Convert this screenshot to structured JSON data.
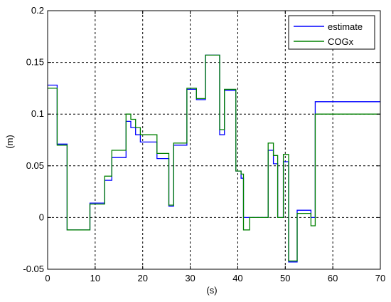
{
  "chart_data": {
    "type": "line",
    "xlabel": "(s)",
    "ylabel": "(m)",
    "xlim": [
      0,
      70
    ],
    "ylim": [
      -0.05,
      0.2
    ],
    "xticks": [
      0,
      10,
      20,
      30,
      40,
      50,
      60,
      70
    ],
    "xtick_labels": [
      "0",
      "10",
      "20",
      "30",
      "40",
      "50",
      "60",
      "70"
    ],
    "yticks": [
      -0.05,
      0,
      0.05,
      0.1,
      0.15,
      0.2
    ],
    "ytick_labels": [
      "-0.05",
      "0",
      "0.05",
      "0.1",
      "0.15",
      "0.2"
    ],
    "grid": true,
    "legend_position": "top-right",
    "series": [
      {
        "name": "estimate",
        "color": "#0000ff",
        "x": [
          0,
          1,
          1,
          2,
          2,
          3,
          3,
          4.1,
          4.1,
          5,
          5,
          8,
          8,
          8.9,
          8.9,
          11,
          11,
          12,
          12,
          13.5,
          13.5,
          15,
          15,
          16.5,
          16.5,
          17.5,
          17.5,
          18.5,
          18.5,
          19.5,
          19.5,
          21,
          21,
          23,
          23,
          25.5,
          25.5,
          26.5,
          26.5,
          27.8,
          27.8,
          29.3,
          29.3,
          30,
          30,
          31.3,
          31.3,
          33.2,
          33.2,
          35,
          35,
          36.2,
          36.2,
          37.2,
          37.2,
          38.3,
          38.3,
          39.6,
          39.6,
          40.7,
          40.7,
          41.2,
          41.2,
          42.5,
          42.5,
          44,
          44,
          46.4,
          46.4,
          47.5,
          47.5,
          48.4,
          48.4,
          49.6,
          49.6,
          50.7,
          50.7,
          51.3,
          51.3,
          52.5,
          52.5,
          53,
          53,
          55.4,
          55.4,
          56.3,
          56.3,
          64.9,
          64.9,
          69.2,
          69.2,
          70
        ],
        "y": [
          0.128,
          0.128,
          0.128,
          0.128,
          0.071,
          0.071,
          0.071,
          0.071,
          -0.012,
          -0.012,
          -0.012,
          -0.012,
          -0.012,
          -0.012,
          0.014,
          0.014,
          0.014,
          0.014,
          0.036,
          0.036,
          0.058,
          0.058,
          0.058,
          0.058,
          0.093,
          0.093,
          0.087,
          0.087,
          0.08,
          0.08,
          0.073,
          0.073,
          0.073,
          0.073,
          0.057,
          0.057,
          0.011,
          0.011,
          0.07,
          0.07,
          0.07,
          0.07,
          0.124,
          0.124,
          0.124,
          0.124,
          0.114,
          0.114,
          0.157,
          0.157,
          0.157,
          0.157,
          0.08,
          0.08,
          0.123,
          0.123,
          0.123,
          0.123,
          0.045,
          0.045,
          0.038,
          0.038,
          0.0,
          0.0,
          0.0,
          0.0,
          0.0,
          0.0,
          0.065,
          0.065,
          0.052,
          0.052,
          0.0,
          0.0,
          0.054,
          0.054,
          -0.043,
          -0.043,
          -0.043,
          -0.043,
          0.007,
          0.007,
          0.007,
          0.007,
          0.0,
          0.0,
          0.112,
          0.112,
          0.112,
          0.112,
          0.112,
          0.112
        ]
      },
      {
        "name": "COGx",
        "color": "#008000",
        "x": [
          0,
          1,
          1,
          2,
          2,
          3,
          3,
          4.1,
          4.1,
          5,
          5,
          8,
          8,
          8.9,
          8.9,
          11,
          11,
          12,
          12,
          13.5,
          13.5,
          15,
          15,
          16.5,
          16.5,
          17.5,
          17.5,
          18.5,
          18.5,
          19.5,
          19.5,
          21,
          21,
          23,
          23,
          25.5,
          25.5,
          26.5,
          26.5,
          27.8,
          27.8,
          29.3,
          29.3,
          30,
          30,
          31.3,
          31.3,
          33.2,
          33.2,
          35,
          35,
          36.2,
          36.2,
          37.2,
          37.2,
          38.3,
          38.3,
          39.6,
          39.6,
          40.7,
          40.7,
          41.2,
          41.2,
          42.5,
          42.5,
          44,
          44,
          46.4,
          46.4,
          47.5,
          47.5,
          48.4,
          48.4,
          49.6,
          49.6,
          50.7,
          50.7,
          51.3,
          51.3,
          52.5,
          52.5,
          53,
          53,
          55.4,
          55.4,
          56.3,
          56.3,
          64.9,
          64.9,
          69.2,
          69.2,
          70
        ],
        "y": [
          0.125,
          0.125,
          0.125,
          0.125,
          0.07,
          0.07,
          0.07,
          0.07,
          -0.012,
          -0.012,
          -0.012,
          -0.012,
          -0.012,
          -0.012,
          0.013,
          0.013,
          0.013,
          0.013,
          0.04,
          0.04,
          0.065,
          0.065,
          0.065,
          0.065,
          0.1,
          0.1,
          0.095,
          0.095,
          0.087,
          0.087,
          0.08,
          0.08,
          0.08,
          0.08,
          0.062,
          0.062,
          0.012,
          0.012,
          0.072,
          0.072,
          0.072,
          0.072,
          0.125,
          0.125,
          0.125,
          0.125,
          0.115,
          0.115,
          0.157,
          0.157,
          0.157,
          0.157,
          0.085,
          0.085,
          0.124,
          0.124,
          0.124,
          0.124,
          0.045,
          0.045,
          0.042,
          0.042,
          -0.012,
          -0.012,
          0.0,
          0.0,
          0.0,
          0.0,
          0.072,
          0.072,
          0.06,
          0.06,
          0.0,
          0.0,
          0.061,
          0.061,
          -0.042,
          -0.042,
          -0.042,
          -0.042,
          0.004,
          0.004,
          0.004,
          0.004,
          -0.008,
          -0.008,
          0.1,
          0.1,
          0.1,
          0.1,
          0.1,
          0.1
        ]
      }
    ]
  }
}
